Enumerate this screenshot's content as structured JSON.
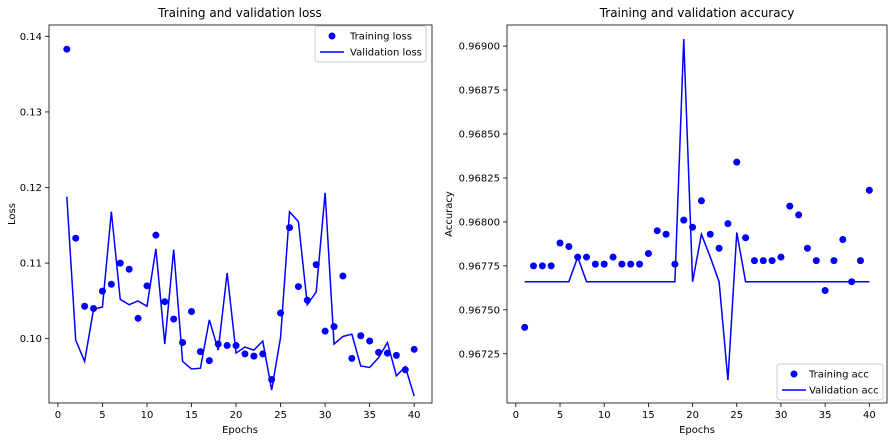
{
  "chart_data": [
    {
      "type": "line",
      "title": "Training and validation loss",
      "xlabel": "Epochs",
      "ylabel": "Loss",
      "xlim": [
        -1,
        42
      ],
      "ylim": [
        0.0915,
        0.1415
      ],
      "xticks": [
        0,
        5,
        10,
        15,
        20,
        25,
        30,
        35,
        40
      ],
      "yticks": [
        0.1,
        0.11,
        0.12,
        0.13,
        0.14
      ],
      "ytick_labels": [
        "0.10",
        "0.11",
        "0.12",
        "0.13",
        "0.14"
      ],
      "grid": false,
      "legend_position": "top-right",
      "x": [
        1,
        2,
        3,
        4,
        5,
        6,
        7,
        8,
        9,
        10,
        11,
        12,
        13,
        14,
        15,
        16,
        17,
        18,
        19,
        20,
        21,
        22,
        23,
        24,
        25,
        26,
        27,
        28,
        29,
        30,
        31,
        32,
        33,
        34,
        35,
        36,
        37,
        38,
        39,
        40
      ],
      "series": [
        {
          "name": "Training loss",
          "style": "markers",
          "color": "#0000ff",
          "values": [
            0.1383,
            0.1133,
            0.1043,
            0.104,
            0.1063,
            0.1072,
            0.11,
            0.1092,
            0.1027,
            0.107,
            0.1137,
            0.1049,
            0.1026,
            0.0995,
            0.1036,
            0.0983,
            0.0971,
            0.0993,
            0.0991,
            0.0991,
            0.098,
            0.0977,
            0.098,
            0.0946,
            0.1034,
            0.1147,
            0.1069,
            0.1051,
            0.1098,
            0.101,
            0.1016,
            0.1083,
            0.0974,
            0.1004,
            0.0997,
            0.0982,
            0.0981,
            0.0978,
            0.0959,
            0.0986
          ]
        },
        {
          "name": "Validation loss",
          "style": "line",
          "color": "#0000ff",
          "values": [
            0.1188,
            0.0998,
            0.097,
            0.1039,
            0.1042,
            0.1168,
            0.1052,
            0.1045,
            0.105,
            0.1043,
            0.1119,
            0.0993,
            0.1118,
            0.097,
            0.096,
            0.0961,
            0.1025,
            0.0985,
            0.1087,
            0.0981,
            0.0989,
            0.0985,
            0.0997,
            0.0932,
            0.1002,
            0.1168,
            0.1155,
            0.1045,
            0.1062,
            0.1193,
            0.0993,
            0.1003,
            0.1006,
            0.0964,
            0.0962,
            0.0975,
            0.0995,
            0.0951,
            0.0963,
            0.0924
          ]
        }
      ]
    },
    {
      "type": "line",
      "title": "Training and validation accuracy",
      "xlabel": "Epochs",
      "ylabel": "Accuracy",
      "xlim": [
        -1,
        42
      ],
      "ylim": [
        0.96697,
        0.96912
      ],
      "xticks": [
        0,
        5,
        10,
        15,
        20,
        25,
        30,
        35,
        40
      ],
      "yticks": [
        0.96725,
        0.9675,
        0.96775,
        0.968,
        0.96825,
        0.9685,
        0.96875,
        0.969
      ],
      "ytick_labels": [
        "0.96725",
        "0.96750",
        "0.96775",
        "0.96800",
        "0.96825",
        "0.96850",
        "0.96875",
        "0.96900"
      ],
      "grid": false,
      "legend_position": "bottom-right",
      "x": [
        1,
        2,
        3,
        4,
        5,
        6,
        7,
        8,
        9,
        10,
        11,
        12,
        13,
        14,
        15,
        16,
        17,
        18,
        19,
        20,
        21,
        22,
        23,
        24,
        25,
        26,
        27,
        28,
        29,
        30,
        31,
        32,
        33,
        34,
        35,
        36,
        37,
        38,
        39,
        40
      ],
      "series": [
        {
          "name": "Training acc",
          "style": "markers",
          "color": "#0000ff",
          "values": [
            0.9674,
            0.96775,
            0.96775,
            0.96775,
            0.96788,
            0.96786,
            0.9678,
            0.9678,
            0.96776,
            0.96776,
            0.9678,
            0.96776,
            0.96776,
            0.96776,
            0.96782,
            0.96795,
            0.96793,
            0.96776,
            0.96801,
            0.96797,
            0.96812,
            0.96793,
            0.96785,
            0.96799,
            0.96834,
            0.96791,
            0.96778,
            0.96778,
            0.96778,
            0.9678,
            0.96809,
            0.96804,
            0.96785,
            0.96778,
            0.96761,
            0.96778,
            0.9679,
            0.96766,
            0.96778,
            0.96818
          ]
        },
        {
          "name": "Validation acc",
          "style": "line",
          "color": "#0000ff",
          "values": [
            0.96766,
            0.96766,
            0.96766,
            0.96766,
            0.96766,
            0.96766,
            0.9678,
            0.96766,
            0.96766,
            0.96766,
            0.96766,
            0.96766,
            0.96766,
            0.96766,
            0.96766,
            0.96766,
            0.96766,
            0.96766,
            0.96904,
            0.96766,
            0.96793,
            0.9678,
            0.96766,
            0.9671,
            0.96794,
            0.96766,
            0.96766,
            0.96766,
            0.96766,
            0.96766,
            0.96766,
            0.96766,
            0.96766,
            0.96766,
            0.96766,
            0.96766,
            0.96766,
            0.96766,
            0.96766,
            0.96766
          ]
        }
      ]
    }
  ]
}
